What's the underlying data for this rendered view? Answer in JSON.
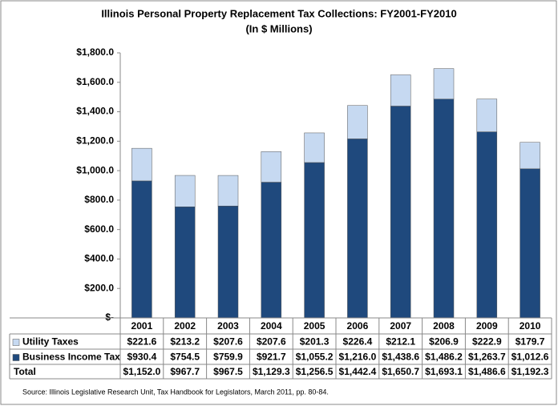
{
  "chart_data": {
    "type": "stacked_bar",
    "title": "Illinois Personal Property Replacement Tax Collections: FY2001-FY2010",
    "subtitle": "(In $ Millions)",
    "categories": [
      "2001",
      "2002",
      "2003",
      "2004",
      "2005",
      "2006",
      "2007",
      "2008",
      "2009",
      "2010"
    ],
    "series": [
      {
        "name": "Business Income Tax",
        "color": "#1f497d",
        "values": [
          930.4,
          754.5,
          759.9,
          921.7,
          1055.2,
          1216.0,
          1438.6,
          1486.2,
          1263.7,
          1012.6
        ],
        "value_labels": [
          "$930.4",
          "$754.5",
          "$759.9",
          "$921.7",
          "$1,055.2",
          "$1,216.0",
          "$1,438.6",
          "$1,486.2",
          "$1,263.7",
          "$1,012.6"
        ]
      },
      {
        "name": "Utility Taxes",
        "color": "#c6d9f1",
        "values": [
          221.6,
          213.2,
          207.6,
          207.6,
          201.3,
          226.4,
          212.1,
          206.9,
          222.9,
          179.7
        ],
        "value_labels": [
          "$221.6",
          "$213.2",
          "$207.6",
          "$207.6",
          "$201.3",
          "$226.4",
          "$212.1",
          "$206.9",
          "$222.9",
          "$179.7"
        ]
      }
    ],
    "total": {
      "name": "Total",
      "values": [
        1152.0,
        967.7,
        967.5,
        1129.3,
        1256.5,
        1442.4,
        1650.7,
        1693.1,
        1486.6,
        1192.3
      ],
      "value_labels": [
        "$1,152.0",
        "$967.7",
        "$967.5",
        "$1,129.3",
        "$1,256.5",
        "$1,442.4",
        "$1,650.7",
        "$1,693.1",
        "$1,486.6",
        "$1,192.3"
      ]
    },
    "ylim": [
      0,
      1800
    ],
    "yticks": [
      {
        "value": 0,
        "label": "$-"
      },
      {
        "value": 200,
        "label": "$200.0"
      },
      {
        "value": 400,
        "label": "$400.0"
      },
      {
        "value": 600,
        "label": "$600.0"
      },
      {
        "value": 800,
        "label": "$800.0"
      },
      {
        "value": 1000,
        "label": "$1,000.0"
      },
      {
        "value": 1200,
        "label": "$1,200.0"
      },
      {
        "value": 1400,
        "label": "$1,400.0"
      },
      {
        "value": 1600,
        "label": "$1,600.0"
      },
      {
        "value": 1800,
        "label": "$1,800.0"
      }
    ],
    "source": "Source: Illinois Legislative Research Unit, Tax Handbook for Legislators, March 2011, pp. 80-84."
  }
}
